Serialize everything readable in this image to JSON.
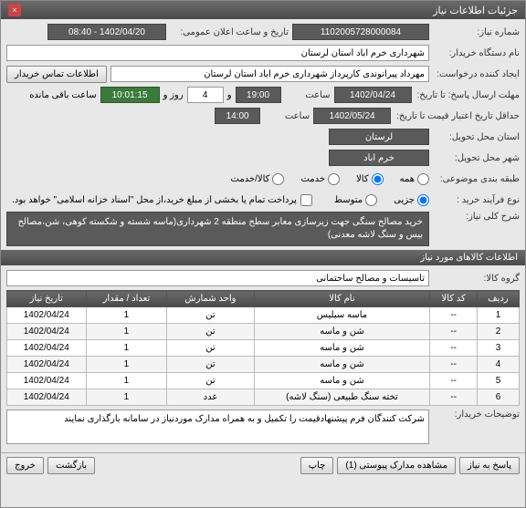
{
  "titlebar": {
    "title": "جزئیات اطلاعات نیاز",
    "close": "×"
  },
  "fields": {
    "need_no_label": "شماره نیاز:",
    "need_no": "1102005728000084",
    "announce_label": "تاریخ و ساعت اعلان عمومی:",
    "announce_date": "1402/04/20 - 08:40",
    "org_label": "نام دستگاه خریدار:",
    "org": "شهرداری خرم اباد استان لرستان",
    "creator_label": "ایجاد کننده درخواست:",
    "creator": "مهرداد پیرانوندی کارپرداز شهرداری خرم اباد استان لرستان",
    "contact_btn": "اطلاعات تماس خریدار",
    "deadline_label": "مهلت ارسال پاسخ: تا تاریخ:",
    "deadline_date": "1402/04/24",
    "time_label": "ساعت",
    "deadline_time": "19:00",
    "and_label": "و",
    "days": "4",
    "day_label": "روز و",
    "remain_time": "10:01:15",
    "remain_label": "ساعت باقی مانده",
    "validity_label": "حداقل تاریخ اعتبار قیمت تا تاریخ:",
    "validity_date": "1402/05/24",
    "validity_time": "14:00",
    "province_label": "استان محل تحویل:",
    "province": "لرستان",
    "city_label": "شهر محل تحویل:",
    "city": "خرم اباد",
    "category_label": "طبقه بندی موضوعی:",
    "cat_all": "همه",
    "cat_goods": "کالا",
    "cat_service": "خدمت",
    "cat_goods_service": "کالا/خدمت",
    "process_label": "نوع فرآیند خرید :",
    "proc_partial": "جزیی",
    "proc_medium": "متوسط",
    "payment_note": "پرداخت تمام یا بخشی از مبلغ خرید،از محل \"اسناد خزانه اسلامی\" خواهد بود.",
    "desc_label": "شرح کلی نیاز:",
    "desc": "خرید مصالح سنگی جهت زیرسازی معابر سطح منطقه 2 شهرداری(ماسه شسته و شکسته کوهی، شن،مصالح بیس و سنگ لاشه معدنی)",
    "group_label": "گروه کالا:",
    "group": "تاسیسات و مصالح ساختمانی",
    "buyer_notes_label": "توضیحات خریدار:",
    "buyer_notes": "شرکت کنندگان فرم پیشنهادقیمت را تکمیل و به همراه مدارک موردنیاز در سامانه بارگذاری نمایند"
  },
  "section2": "اطلاعات کالاهای مورد نیاز",
  "table": {
    "headers": [
      "ردیف",
      "کد کالا",
      "نام کالا",
      "واحد شمارش",
      "تعداد / مقدار",
      "تاریخ نیاز"
    ],
    "rows": [
      [
        "1",
        "--",
        "ماسه سیلیس",
        "تن",
        "1",
        "1402/04/24"
      ],
      [
        "2",
        "--",
        "شن و ماسه",
        "تن",
        "1",
        "1402/04/24"
      ],
      [
        "3",
        "--",
        "شن و ماسه",
        "تن",
        "1",
        "1402/04/24"
      ],
      [
        "4",
        "--",
        "شن و ماسه",
        "تن",
        "1",
        "1402/04/24"
      ],
      [
        "5",
        "--",
        "شن و ماسه",
        "تن",
        "1",
        "1402/04/24"
      ],
      [
        "6",
        "--",
        "تخته سنگ طبیعی (سنگ لاشه)",
        "عدد",
        "1",
        "1402/04/24"
      ]
    ]
  },
  "footer": {
    "reply": "پاسخ به نیاز",
    "attachments": "مشاهده مدارک پیوستی (1)",
    "print": "چاپ",
    "back": "بازگشت",
    "exit": "خروج"
  }
}
